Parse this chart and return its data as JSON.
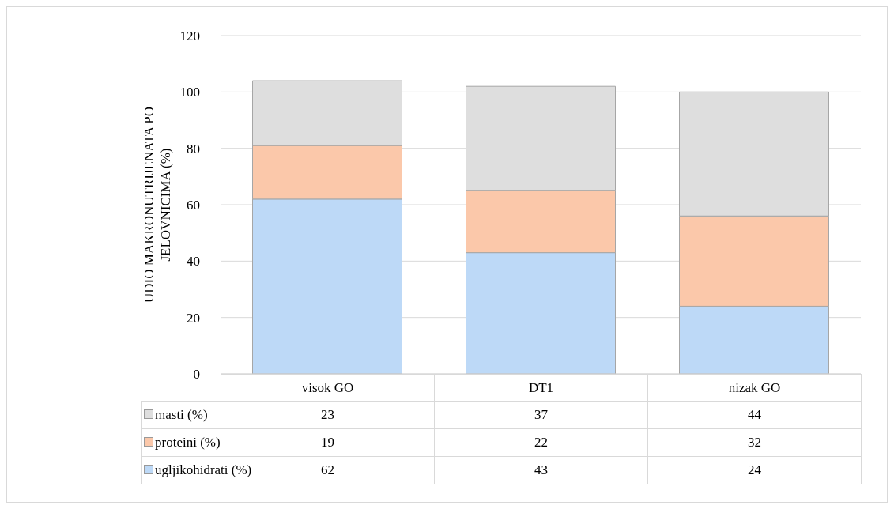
{
  "chart_data": {
    "type": "bar",
    "stacked": true,
    "ylabel": "UDIO MAKRONUTRIJENATA PO JELOVNICIMA (%)",
    "categories": [
      "visok GO",
      "DT1",
      "nizak GO"
    ],
    "series": [
      {
        "name": "ugljikohidrati (%)",
        "color": "#bdd9f7",
        "values": [
          62,
          43,
          24
        ]
      },
      {
        "name": "proteini (%)",
        "color": "#fbc8aa",
        "values": [
          19,
          22,
          32
        ]
      },
      {
        "name": "masti (%)",
        "color": "#dedede",
        "values": [
          23,
          37,
          44
        ]
      }
    ],
    "ylim": [
      0,
      120
    ],
    "yticks": [
      0,
      20,
      40,
      60,
      80,
      100,
      120
    ],
    "grid": "y",
    "legend": "bottom",
    "data_labels": true
  }
}
